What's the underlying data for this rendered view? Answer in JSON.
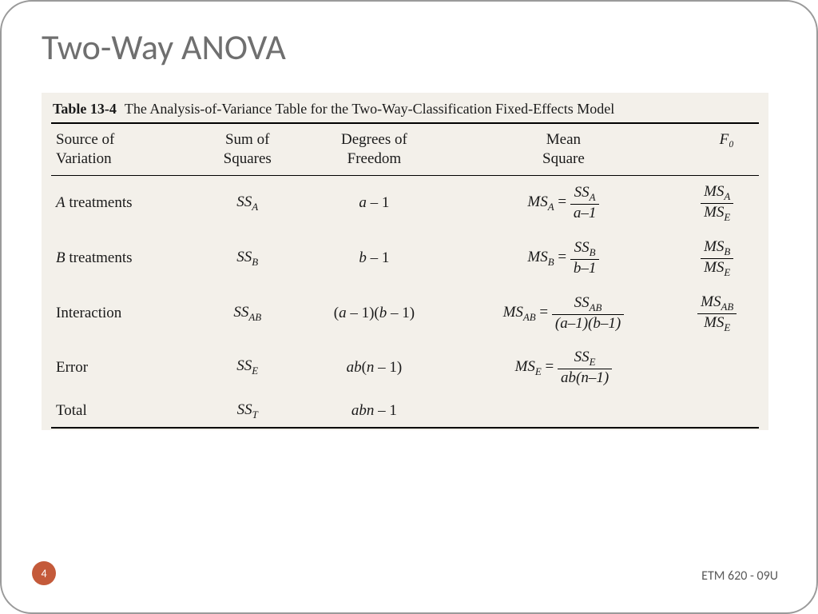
{
  "slide": {
    "title": "Two-Way ANOVA",
    "page_number": "4",
    "footer_right": "ETM 620 - 09U",
    "title_color": "#6f6f6f",
    "title_fontsize": 44,
    "border_color": "#9a9a9a",
    "border_radius": 40,
    "page_badge_color": "#c45a3a"
  },
  "table": {
    "background_color": "#f3f0ea",
    "caption_label": "Table 13-4",
    "caption_text": "The Analysis-of-Variance Table for the Two-Way-Classification Fixed-Effects Model",
    "headers": {
      "source": "Source of\nVariation",
      "ss": "Sum of\nSquares",
      "df": "Degrees of\nFreedom",
      "ms": "Mean\nSquare",
      "f0": "F₀"
    },
    "rows": [
      {
        "source_html": "<span class='it'>A</span> treatments",
        "ss_html": "<span class='it'>SS<sub>A</sub></span>",
        "df_html": "<span class='it'>a</span> – 1",
        "ms_html": "<span class='eq'><span class='it'>MS<sub>A</sub></span> = <span class='frac'><span class='num'>SS<sub>A</sub></span><span class='den'>a–1</span></span></span>",
        "f0_html": "<span class='frac'><span class='num'>MS<sub>A</sub></span><span class='den'>MS<sub>E</sub></span></span>"
      },
      {
        "source_html": "<span class='it'>B</span> treatments",
        "ss_html": "<span class='it'>SS<sub>B</sub></span>",
        "df_html": "<span class='it'>b</span> – 1",
        "ms_html": "<span class='eq'><span class='it'>MS<sub>B</sub></span> = <span class='frac'><span class='num'>SS<sub>B</sub></span><span class='den'>b–1</span></span></span>",
        "f0_html": "<span class='frac'><span class='num'>MS<sub>B</sub></span><span class='den'>MS<sub>E</sub></span></span>"
      },
      {
        "source_html": "Interaction",
        "ss_html": "<span class='it'>SS<sub>AB</sub></span>",
        "df_html": "(<span class='it'>a</span> – 1)(<span class='it'>b</span> – 1)",
        "ms_html": "<span class='eq'><span class='it'>MS<sub>AB</sub></span> = <span class='frac'><span class='num'>SS<sub>AB</sub></span><span class='den'>(a–1)(b–1)</span></span></span>",
        "f0_html": "<span class='frac'><span class='num'>MS<sub>AB</sub></span><span class='den'>MS<sub>E</sub></span></span>"
      },
      {
        "source_html": "Error",
        "ss_html": "<span class='it'>SS<sub>E</sub></span>",
        "df_html": "<span class='it'>ab</span>(<span class='it'>n</span> – 1)",
        "ms_html": "<span class='eq'><span class='it'>MS<sub>E</sub></span> = <span class='frac'><span class='num'>SS<sub>E</sub></span><span class='den'>ab(n–1)</span></span></span>",
        "f0_html": ""
      },
      {
        "source_html": "Total",
        "ss_html": "<span class='it'>SS<sub>T</sub></span>",
        "df_html": "<span class='it'>abn</span> – 1",
        "ms_html": "",
        "f0_html": ""
      }
    ],
    "col_align": [
      "left",
      "center",
      "center",
      "center",
      "center"
    ],
    "font_family": "Georgia, 'Times New Roman', serif",
    "header_fontsize": 19,
    "body_fontsize": 19,
    "rule_color": "#000000"
  }
}
